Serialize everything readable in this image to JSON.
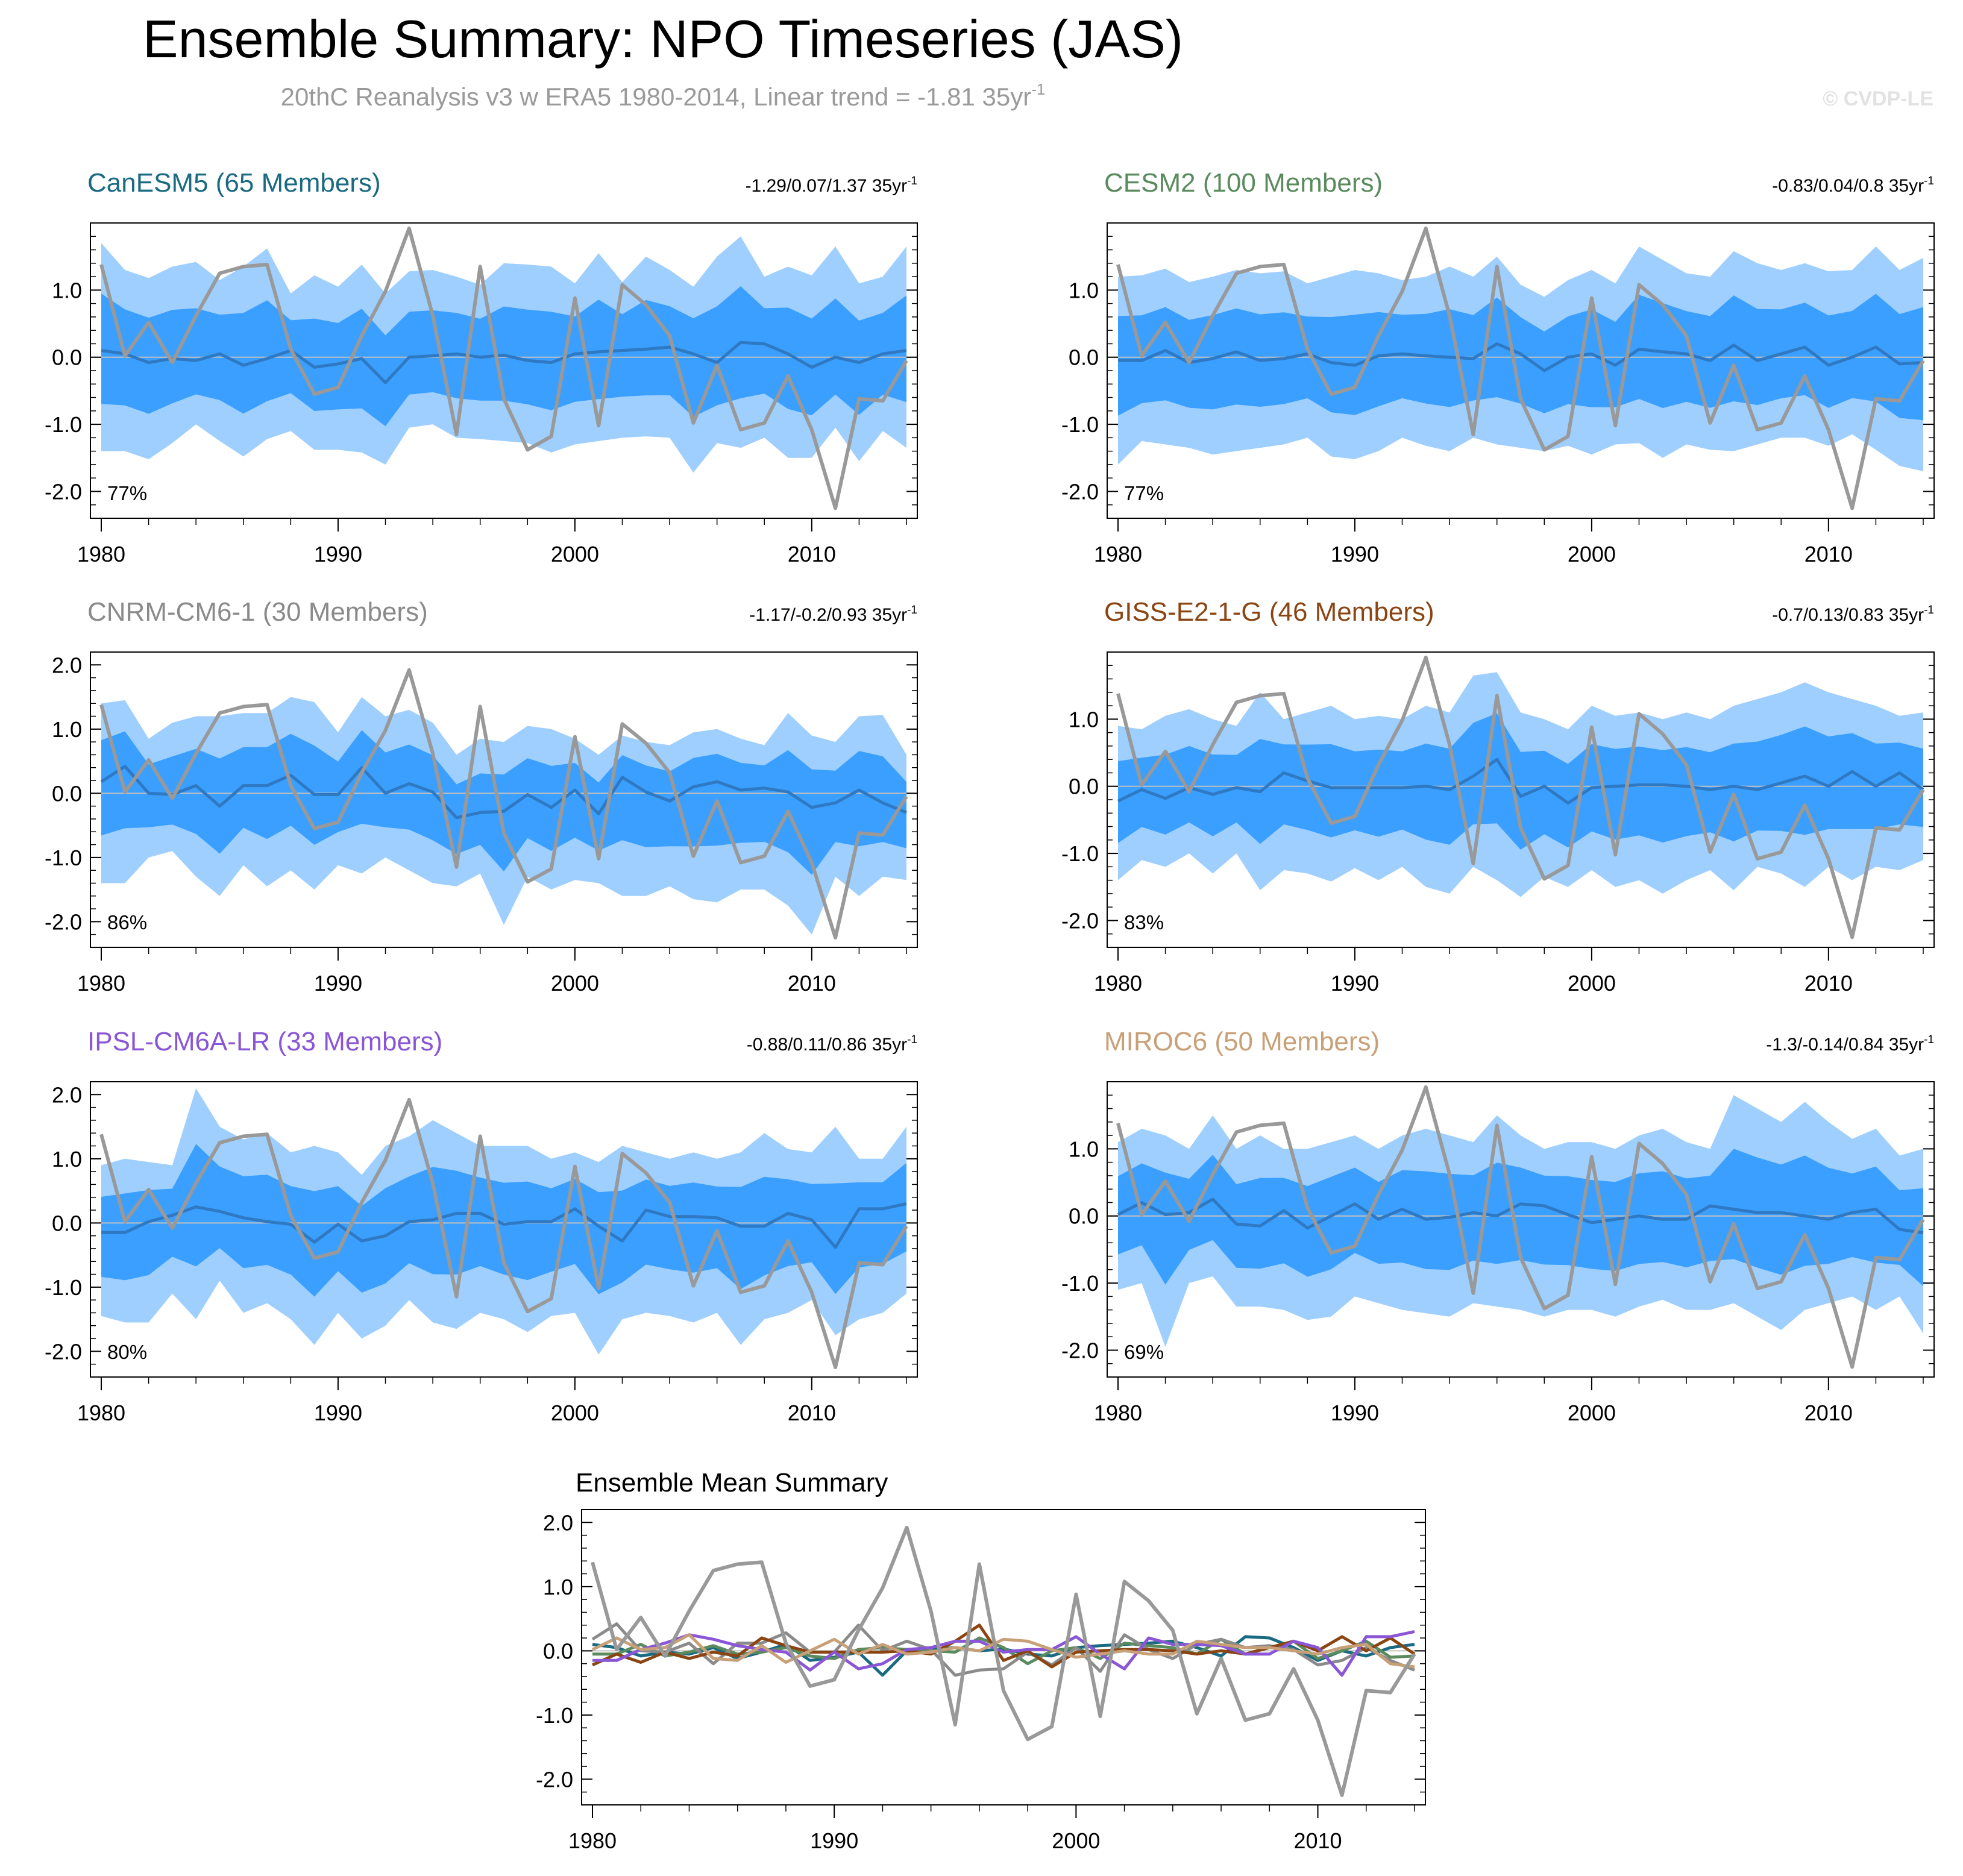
{
  "header": {
    "title": "Ensemble Summary: NPO Timeseries (JAS)",
    "subtitle": "20thC Reanalysis v3 w ERA5 1980-2014, Linear trend = -1.81 35yr",
    "subtitle_sup": "-1",
    "watermark": "© CVDP-LE"
  },
  "colors": {
    "band_outer": "#9fcfff",
    "band_inner": "#3a9fff",
    "ens_mean_line": "#2f78c2",
    "obs_line": "#999999",
    "zero_line": "#c0c0c0"
  },
  "obs_series": [
    1.38,
    0.02,
    0.52,
    -0.08,
    0.62,
    1.25,
    1.35,
    1.38,
    0.12,
    -0.55,
    -0.45,
    0.32,
    0.98,
    1.92,
    0.62,
    -1.15,
    1.35,
    -0.62,
    -1.38,
    -1.18,
    0.88,
    -1.02,
    1.08,
    0.78,
    0.32,
    -0.98,
    -0.12,
    -1.08,
    -0.98,
    -0.28,
    -1.08,
    -2.25,
    -0.62,
    -0.65,
    -0.05
  ],
  "chart_data": [
    {
      "type": "area",
      "title": "CanESM5 (65 Members)",
      "title_color": "#1a6a82",
      "stats": "-1.29/0.07/1.37 35yr",
      "stats_sup": "-1",
      "percent": "77%",
      "x_start": 1980,
      "xlim": [
        1980,
        2014
      ],
      "ylim": [
        -2.4,
        2.0
      ],
      "yticks": [
        "1.0",
        "0.0",
        "-1.0",
        "-2.0"
      ],
      "xticks": [
        "1980",
        "1990",
        "2000",
        "2010"
      ],
      "series": [
        {
          "name": "ensemble mean",
          "values": [
            0.1,
            0.05,
            -0.08,
            -0.02,
            -0.05,
            0.05,
            -0.12,
            -0.02,
            0.1,
            -0.15,
            -0.1,
            -0.02,
            -0.38,
            0.0,
            0.02,
            0.05,
            0.0,
            0.03,
            -0.05,
            -0.08,
            0.05,
            0.08,
            0.1,
            0.12,
            0.15,
            0.05,
            -0.08,
            0.22,
            0.2,
            0.05,
            -0.15,
            0.0,
            -0.08,
            0.05,
            0.1
          ]
        },
        {
          "name": "observations",
          "ref": "obs_series"
        }
      ],
      "band_outer_hi": [
        1.7,
        1.3,
        1.18,
        1.35,
        1.42,
        1.15,
        1.35,
        1.62,
        0.95,
        1.22,
        1.05,
        1.38,
        0.95,
        1.28,
        1.3,
        1.2,
        1.08,
        1.4,
        1.38,
        1.35,
        1.1,
        1.55,
        1.12,
        1.5,
        1.3,
        1.05,
        1.5,
        1.8,
        1.2,
        1.35,
        1.22,
        1.65,
        1.1,
        1.2,
        1.65
      ],
      "band_outer_lo": [
        -1.4,
        -1.4,
        -1.52,
        -1.28,
        -1.0,
        -1.25,
        -1.48,
        -1.22,
        -1.1,
        -1.38,
        -1.38,
        -1.42,
        -1.6,
        -1.05,
        -1.0,
        -1.2,
        -1.22,
        -1.25,
        -1.28,
        -1.42,
        -1.3,
        -1.25,
        -1.2,
        -1.18,
        -1.2,
        -1.72,
        -1.28,
        -1.35,
        -1.2,
        -1.5,
        -1.5,
        -1.05,
        -1.55,
        -1.1,
        -1.35
      ]
    },
    {
      "type": "area",
      "title": "CESM2 (100 Members)",
      "title_color": "#5a8a5e",
      "stats": "-0.83/0.04/0.8 35yr",
      "stats_sup": "-1",
      "percent": "77%",
      "x_start": 1980,
      "xlim": [
        1980,
        2014
      ],
      "ylim": [
        -2.4,
        2.0
      ],
      "yticks": [
        "1.0",
        "0.0",
        "-1.0",
        "-2.0"
      ],
      "xticks": [
        "1980",
        "1990",
        "2000",
        "2010"
      ],
      "series": [
        {
          "name": "ensemble mean",
          "values": [
            -0.05,
            -0.05,
            0.1,
            -0.08,
            -0.02,
            0.08,
            -0.05,
            -0.02,
            0.05,
            -0.08,
            -0.12,
            0.02,
            0.05,
            0.02,
            0.0,
            -0.02,
            0.2,
            0.05,
            -0.2,
            0.0,
            0.05,
            -0.12,
            0.12,
            0.08,
            0.05,
            -0.05,
            0.18,
            -0.05,
            0.05,
            0.15,
            -0.12,
            0.0,
            0.15,
            -0.1,
            -0.08
          ]
        },
        {
          "name": "observations",
          "ref": "obs_series"
        }
      ],
      "band_outer_hi": [
        1.2,
        1.22,
        1.32,
        1.12,
        1.2,
        1.3,
        1.25,
        1.28,
        1.1,
        1.2,
        1.3,
        1.25,
        1.15,
        1.2,
        1.35,
        1.2,
        1.5,
        1.08,
        0.9,
        1.15,
        1.3,
        1.1,
        1.65,
        1.45,
        1.25,
        1.2,
        1.58,
        1.4,
        1.3,
        1.4,
        1.28,
        1.3,
        1.65,
        1.3,
        1.48
      ],
      "band_outer_lo": [
        -1.6,
        -1.25,
        -1.3,
        -1.35,
        -1.45,
        -1.4,
        -1.35,
        -1.3,
        -1.2,
        -1.48,
        -1.52,
        -1.4,
        -1.2,
        -1.32,
        -1.4,
        -1.2,
        -1.3,
        -1.35,
        -1.4,
        -1.32,
        -1.45,
        -1.3,
        -1.28,
        -1.5,
        -1.3,
        -1.38,
        -1.4,
        -1.3,
        -1.2,
        -1.2,
        -1.32,
        -1.15,
        -1.38,
        -1.62,
        -1.7
      ]
    },
    {
      "type": "area",
      "title": "CNRM-CM6-1 (30 Members)",
      "title_color": "#8a8a8a",
      "stats": "-1.17/-0.2/0.93 35yr",
      "stats_sup": "-1",
      "percent": "86%",
      "x_start": 1980,
      "xlim": [
        1980,
        2014
      ],
      "ylim": [
        -2.4,
        2.2
      ],
      "yticks": [
        "2.0",
        "1.0",
        "0.0",
        "-1.0",
        "-2.0"
      ],
      "xticks": [
        "1980",
        "1990",
        "2000",
        "2010"
      ],
      "series": [
        {
          "name": "ensemble mean",
          "values": [
            0.18,
            0.42,
            0.0,
            -0.02,
            0.12,
            -0.2,
            0.12,
            0.12,
            0.28,
            -0.02,
            -0.02,
            0.4,
            0.0,
            0.15,
            0.02,
            -0.38,
            -0.3,
            -0.28,
            -0.02,
            -0.22,
            0.05,
            -0.32,
            0.25,
            0.02,
            -0.12,
            0.1,
            0.18,
            0.05,
            0.08,
            0.02,
            -0.22,
            -0.15,
            0.05,
            -0.15,
            -0.3
          ]
        },
        {
          "name": "observations",
          "ref": "obs_series"
        }
      ],
      "band_outer_hi": [
        1.4,
        1.45,
        0.85,
        1.1,
        1.2,
        1.2,
        1.25,
        1.25,
        1.5,
        1.42,
        0.95,
        1.5,
        1.2,
        1.3,
        1.1,
        0.6,
        0.85,
        0.8,
        1.05,
        1.0,
        0.85,
        0.6,
        0.9,
        0.8,
        0.75,
        0.95,
        1.0,
        0.85,
        0.75,
        1.25,
        0.9,
        0.8,
        1.2,
        1.22,
        0.6
      ],
      "band_outer_lo": [
        -1.4,
        -1.4,
        -1.0,
        -0.9,
        -1.3,
        -1.6,
        -1.12,
        -1.45,
        -1.2,
        -1.5,
        -1.12,
        -1.25,
        -1.0,
        -1.2,
        -1.4,
        -1.45,
        -1.25,
        -2.05,
        -1.3,
        -1.5,
        -1.35,
        -1.4,
        -1.6,
        -1.6,
        -1.45,
        -1.65,
        -1.7,
        -1.5,
        -1.5,
        -1.75,
        -2.2,
        -1.3,
        -1.6,
        -1.3,
        -1.35
      ]
    },
    {
      "type": "area",
      "title": "GISS-E2-1-G (46 Members)",
      "title_color": "#8b4513",
      "stats": "-0.7/0.13/0.83 35yr",
      "stats_sup": "-1",
      "percent": "83%",
      "x_start": 1980,
      "xlim": [
        1980,
        2014
      ],
      "ylim": [
        -2.4,
        2.0
      ],
      "yticks": [
        "1.0",
        "0.0",
        "-1.0",
        "-2.0"
      ],
      "xticks": [
        "1980",
        "1990",
        "2000",
        "2010"
      ],
      "series": [
        {
          "name": "ensemble mean",
          "values": [
            -0.22,
            -0.05,
            -0.18,
            -0.02,
            -0.12,
            -0.02,
            -0.08,
            0.2,
            0.08,
            -0.02,
            -0.02,
            -0.02,
            -0.02,
            0.0,
            -0.05,
            0.15,
            0.4,
            -0.15,
            0.0,
            -0.25,
            -0.02,
            0.0,
            0.02,
            0.02,
            0.0,
            -0.05,
            0.0,
            -0.05,
            0.05,
            0.15,
            0.0,
            0.22,
            0.0,
            0.2,
            -0.05
          ]
        },
        {
          "name": "observations",
          "ref": "obs_series"
        }
      ],
      "band_outer_hi": [
        0.9,
        0.85,
        1.05,
        1.15,
        1.0,
        0.9,
        1.4,
        1.0,
        1.1,
        1.2,
        1.0,
        1.05,
        1.0,
        1.2,
        1.1,
        1.65,
        1.7,
        1.1,
        1.0,
        0.85,
        1.2,
        1.05,
        1.1,
        1.0,
        1.1,
        1.0,
        1.2,
        1.3,
        1.4,
        1.55,
        1.4,
        1.3,
        1.2,
        1.05,
        1.1
      ],
      "band_outer_lo": [
        -1.4,
        -1.1,
        -1.2,
        -1.0,
        -1.3,
        -1.0,
        -1.55,
        -1.25,
        -1.3,
        -1.42,
        -1.22,
        -1.4,
        -1.2,
        -1.5,
        -1.6,
        -1.2,
        -1.4,
        -1.65,
        -1.35,
        -1.5,
        -1.25,
        -1.5,
        -1.4,
        -1.6,
        -1.4,
        -1.25,
        -1.55,
        -1.2,
        -1.3,
        -1.5,
        -1.2,
        -1.4,
        -1.2,
        -1.25,
        -1.1
      ]
    },
    {
      "type": "area",
      "title": "IPSL-CM6A-LR (33 Members)",
      "title_color": "#8a56d6",
      "stats": "-0.88/0.11/0.86 35yr",
      "stats_sup": "-1",
      "percent": "80%",
      "x_start": 1980,
      "xlim": [
        1980,
        2014
      ],
      "ylim": [
        -2.4,
        2.2
      ],
      "yticks": [
        "2.0",
        "1.0",
        "0.0",
        "-1.0",
        "-2.0"
      ],
      "xticks": [
        "1980",
        "1990",
        "2000",
        "2010"
      ],
      "series": [
        {
          "name": "ensemble mean",
          "values": [
            -0.15,
            -0.15,
            0.02,
            0.12,
            0.25,
            0.18,
            0.08,
            0.02,
            -0.02,
            -0.3,
            -0.02,
            -0.28,
            -0.2,
            0.02,
            0.05,
            0.15,
            0.15,
            -0.02,
            0.02,
            0.02,
            0.22,
            -0.05,
            -0.28,
            0.2,
            0.1,
            0.1,
            0.08,
            -0.05,
            -0.05,
            0.15,
            0.05,
            -0.38,
            0.22,
            0.22,
            0.3
          ]
        },
        {
          "name": "observations",
          "ref": "obs_series"
        }
      ],
      "band_outer_hi": [
        0.9,
        1.0,
        0.95,
        0.9,
        2.1,
        1.5,
        1.3,
        1.4,
        1.1,
        1.2,
        1.1,
        0.75,
        1.2,
        1.35,
        1.6,
        1.4,
        1.2,
        1.2,
        1.2,
        1.0,
        1.1,
        0.95,
        1.2,
        1.1,
        1.0,
        1.1,
        1.0,
        1.1,
        1.4,
        1.15,
        1.1,
        1.5,
        1.0,
        1.0,
        1.5
      ],
      "band_outer_lo": [
        -1.45,
        -1.55,
        -1.55,
        -1.1,
        -1.5,
        -0.9,
        -1.4,
        -1.25,
        -1.5,
        -1.9,
        -1.4,
        -1.8,
        -1.6,
        -1.2,
        -1.55,
        -1.65,
        -1.4,
        -1.5,
        -1.7,
        -1.45,
        -1.4,
        -2.05,
        -1.5,
        -1.4,
        -1.45,
        -1.55,
        -1.4,
        -1.9,
        -1.5,
        -1.4,
        -1.2,
        -1.75,
        -1.5,
        -1.4,
        -1.1
      ]
    },
    {
      "type": "area",
      "title": "MIROC6 (50 Members)",
      "title_color": "#c8a078",
      "stats": "-1.3/-0.14/0.84 35yr",
      "stats_sup": "-1",
      "percent": "69%",
      "x_start": 1980,
      "xlim": [
        1980,
        2014
      ],
      "ylim": [
        -2.4,
        2.0
      ],
      "yticks": [
        "1.0",
        "0.0",
        "-1.0",
        "-2.0"
      ],
      "xticks": [
        "1980",
        "1990",
        "2000",
        "2010"
      ],
      "series": [
        {
          "name": "ensemble mean",
          "values": [
            0.02,
            0.2,
            0.02,
            0.05,
            0.25,
            -0.12,
            -0.15,
            0.08,
            -0.18,
            0.0,
            0.18,
            -0.05,
            0.1,
            -0.05,
            -0.02,
            0.05,
            0.0,
            0.18,
            0.15,
            0.02,
            -0.1,
            -0.05,
            0.0,
            -0.05,
            -0.05,
            0.15,
            0.1,
            0.05,
            0.05,
            0.0,
            -0.05,
            0.05,
            0.1,
            -0.2,
            -0.25
          ]
        },
        {
          "name": "observations",
          "ref": "obs_series"
        }
      ],
      "band_outer_hi": [
        1.1,
        1.3,
        1.2,
        1.0,
        1.5,
        1.0,
        1.2,
        1.0,
        1.0,
        1.1,
        1.2,
        1.0,
        1.2,
        1.3,
        1.2,
        1.1,
        1.5,
        1.2,
        1.0,
        1.1,
        1.1,
        1.0,
        1.2,
        1.3,
        1.1,
        1.0,
        1.8,
        1.6,
        1.4,
        1.7,
        1.4,
        1.15,
        1.3,
        0.9,
        1.0
      ],
      "band_outer_lo": [
        -1.1,
        -1.0,
        -1.95,
        -1.0,
        -0.9,
        -1.35,
        -1.35,
        -1.4,
        -1.55,
        -1.5,
        -1.2,
        -1.3,
        -1.4,
        -1.45,
        -1.5,
        -1.3,
        -1.35,
        -1.4,
        -1.5,
        -1.4,
        -1.4,
        -1.5,
        -1.35,
        -1.25,
        -1.4,
        -1.4,
        -1.3,
        -1.5,
        -1.7,
        -1.4,
        -1.3,
        -1.2,
        -1.4,
        -1.2,
        -1.75
      ]
    },
    {
      "type": "line",
      "title": "Ensemble Mean Summary",
      "x_start": 1980,
      "xlim": [
        1980,
        2014
      ],
      "ylim": [
        -2.4,
        2.2
      ],
      "yticks": [
        "2.0",
        "1.0",
        "0.0",
        "-1.0",
        "-2.0"
      ],
      "xticks": [
        "1980",
        "1990",
        "2000",
        "2010"
      ],
      "series": [
        {
          "name": "CanESM5",
          "color": "#1a6a82",
          "from_panel": 0
        },
        {
          "name": "CESM2",
          "color": "#5a8a5e",
          "from_panel": 1
        },
        {
          "name": "CNRM-CM6-1",
          "color": "#8a8a8a",
          "from_panel": 2
        },
        {
          "name": "GISS-E2-1-G",
          "color": "#8b4513",
          "from_panel": 3
        },
        {
          "name": "IPSL-CM6A-LR",
          "color": "#8a56d6",
          "from_panel": 4
        },
        {
          "name": "MIROC6",
          "color": "#c8a078",
          "from_panel": 5
        },
        {
          "name": "observations",
          "color": "#999999",
          "ref": "obs_series"
        }
      ]
    }
  ]
}
